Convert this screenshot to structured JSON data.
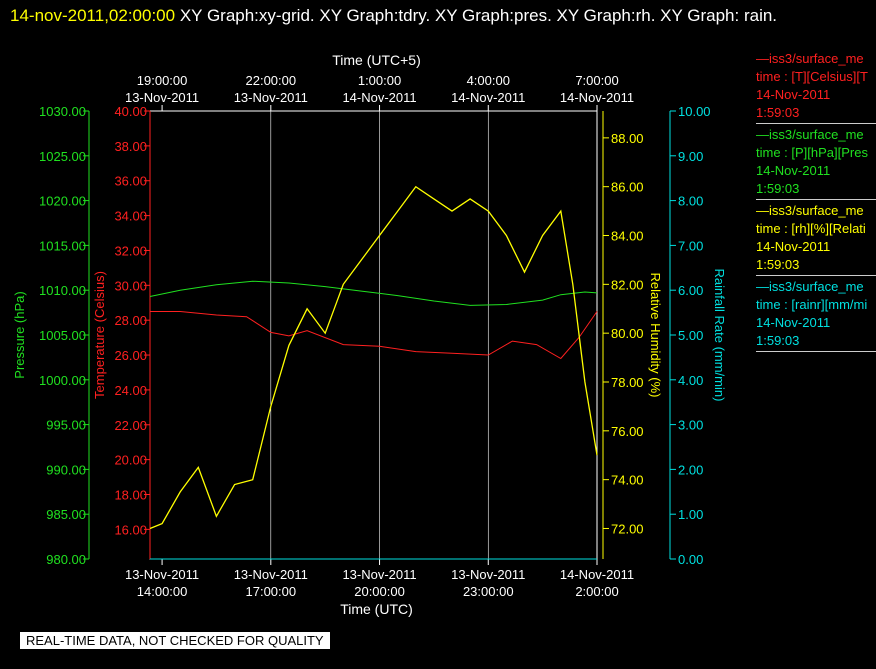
{
  "header": {
    "timestamp": "14-nov-2011,02:00:00",
    "graphs_text": "XY Graph:xy-grid.  XY Graph:tdry.  XY Graph:pres.  XY Graph:rh.  XY Graph: rain."
  },
  "notice": "REAL-TIME DATA, NOT CHECKED FOR QUALITY",
  "colors": {
    "temperature": "#ff2020",
    "pressure": "#20e020",
    "humidity": "#ffff00",
    "rain": "#00e0e0",
    "grid": "#ffffff"
  },
  "legend": [
    {
      "line1": "—iss3/surface_me",
      "line2": "time : [T][Celsius][T",
      "line3": "14-Nov-2011",
      "line4": "1:59:03",
      "color": "#ff2020"
    },
    {
      "line1": "—iss3/surface_me",
      "line2": "time : [P][hPa][Pres",
      "line3": "14-Nov-2011",
      "line4": "1:59:03",
      "color": "#20e020"
    },
    {
      "line1": "—iss3/surface_me",
      "line2": "time : [rh][%][Relati",
      "line3": "14-Nov-2011",
      "line4": "1:59:03",
      "color": "#ffff00"
    },
    {
      "line1": "—iss3/surface_me",
      "line2": "time : [rainr][mm/mi",
      "line3": "14-Nov-2011",
      "line4": "1:59:03",
      "color": "#00e0e0"
    }
  ],
  "chart_data": {
    "type": "line",
    "top_axis": {
      "label": "Time (UTC+5)",
      "ticks": [
        {
          "x": "2011-11-13 14:00",
          "time": "19:00:00",
          "date": "13-Nov-2011"
        },
        {
          "x": "2011-11-13 17:00",
          "time": "22:00:00",
          "date": "13-Nov-2011"
        },
        {
          "x": "2011-11-13 20:00",
          "time": "1:00:00",
          "date": "14-Nov-2011"
        },
        {
          "x": "2011-11-13 23:00",
          "time": "4:00:00",
          "date": "14-Nov-2011"
        },
        {
          "x": "2011-11-14 02:00",
          "time": "7:00:00",
          "date": "14-Nov-2011"
        }
      ]
    },
    "bottom_axis": {
      "label": "Time (UTC)",
      "ticks": [
        {
          "x": "2011-11-13 14:00",
          "date": "13-Nov-2011",
          "time": "14:00:00"
        },
        {
          "x": "2011-11-13 17:00",
          "date": "13-Nov-2011",
          "time": "17:00:00"
        },
        {
          "x": "2011-11-13 20:00",
          "date": "13-Nov-2011",
          "time": "20:00:00"
        },
        {
          "x": "2011-11-13 23:00",
          "date": "13-Nov-2011",
          "time": "23:00:00"
        },
        {
          "x": "2011-11-14 02:00",
          "date": "14-Nov-2011",
          "time": "2:00:00"
        }
      ]
    },
    "xlim": [
      "2011-11-13 13:40",
      "2011-11-14 02:00"
    ],
    "axes": {
      "pressure": {
        "label": "Pressure (hPa)",
        "ylim": [
          980,
          1030
        ],
        "ticks": [
          "980.00",
          "985.00",
          "990.00",
          "995.00",
          "1000.00",
          "1005.00",
          "1010.00",
          "1015.00",
          "1020.00",
          "1025.00",
          "1030.00"
        ]
      },
      "temperature": {
        "label": "Temperature (Celsius)",
        "ylim": [
          14.3,
          40
        ],
        "ticks": [
          "16.00",
          "18.00",
          "20.00",
          "22.00",
          "24.00",
          "26.00",
          "28.00",
          "30.00",
          "32.00",
          "34.00",
          "36.00",
          "38.00",
          "40.00"
        ]
      },
      "humidity": {
        "label": "Relative Humidity (%)",
        "ylim": [
          70.75,
          89.1
        ],
        "ticks": [
          "72.00",
          "74.00",
          "76.00",
          "78.00",
          "80.00",
          "82.00",
          "84.00",
          "86.00",
          "88.00"
        ]
      },
      "rain": {
        "label": "Rainfall Rate (mm/min)",
        "ylim": [
          0,
          10
        ],
        "ticks": [
          "0.00",
          "1.00",
          "2.00",
          "3.00",
          "4.00",
          "5.00",
          "6.00",
          "7.00",
          "8.00",
          "9.00",
          "10.00"
        ]
      }
    },
    "grid": true,
    "series": [
      {
        "key": "temperature",
        "axis": "temperature",
        "x": [
          "2011-11-13 13:40",
          "2011-11-13 14:30",
          "2011-11-13 15:30",
          "2011-11-13 16:20",
          "2011-11-13 17:00",
          "2011-11-13 17:30",
          "2011-11-13 18:00",
          "2011-11-13 19:00",
          "2011-11-13 20:00",
          "2011-11-13 21:00",
          "2011-11-13 22:00",
          "2011-11-13 23:00",
          "2011-11-13 23:40",
          "2011-11-14 00:20",
          "2011-11-14 01:00",
          "2011-11-14 01:30",
          "2011-11-14 02:00"
        ],
        "y": [
          28.5,
          28.5,
          28.3,
          28.2,
          27.3,
          27.1,
          27.4,
          26.6,
          26.5,
          26.2,
          26.1,
          26.0,
          26.8,
          26.6,
          25.8,
          27.0,
          28.5
        ]
      },
      {
        "key": "pressure",
        "axis": "pressure",
        "x": [
          "2011-11-13 13:40",
          "2011-11-13 14:30",
          "2011-11-13 15:30",
          "2011-11-13 16:30",
          "2011-11-13 17:30",
          "2011-11-13 18:30",
          "2011-11-13 19:30",
          "2011-11-13 20:30",
          "2011-11-13 21:30",
          "2011-11-13 22:30",
          "2011-11-13 23:30",
          "2011-11-14 00:30",
          "2011-11-14 01:00",
          "2011-11-14 01:40",
          "2011-11-14 02:00"
        ],
        "y": [
          1009.3,
          1010.0,
          1010.6,
          1011.0,
          1010.8,
          1010.4,
          1009.9,
          1009.4,
          1008.8,
          1008.3,
          1008.4,
          1008.9,
          1009.5,
          1009.8,
          1009.7
        ]
      },
      {
        "key": "humidity",
        "axis": "humidity",
        "x": [
          "2011-11-13 13:40",
          "2011-11-13 14:00",
          "2011-11-13 14:30",
          "2011-11-13 15:00",
          "2011-11-13 15:30",
          "2011-11-13 16:00",
          "2011-11-13 16:30",
          "2011-11-13 17:00",
          "2011-11-13 17:30",
          "2011-11-13 18:00",
          "2011-11-13 18:30",
          "2011-11-13 19:00",
          "2011-11-13 19:30",
          "2011-11-13 20:00",
          "2011-11-13 20:30",
          "2011-11-13 21:00",
          "2011-11-13 21:30",
          "2011-11-13 22:00",
          "2011-11-13 22:30",
          "2011-11-13 23:00",
          "2011-11-13 23:30",
          "2011-11-14 00:00",
          "2011-11-14 00:30",
          "2011-11-14 01:00",
          "2011-11-14 01:20",
          "2011-11-14 01:40",
          "2011-11-14 02:00"
        ],
        "y": [
          72.0,
          72.2,
          73.5,
          74.5,
          72.5,
          73.8,
          74.0,
          77.0,
          79.5,
          81.0,
          80.0,
          82.0,
          83.0,
          84.0,
          85.0,
          86.0,
          85.5,
          85.0,
          85.5,
          85.0,
          84.0,
          82.5,
          84.0,
          85.0,
          82.0,
          78.0,
          75.0
        ]
      },
      {
        "key": "rain",
        "axis": "rain",
        "x": [
          "2011-11-13 13:40",
          "2011-11-14 02:00"
        ],
        "y": [
          0,
          0
        ]
      }
    ]
  }
}
